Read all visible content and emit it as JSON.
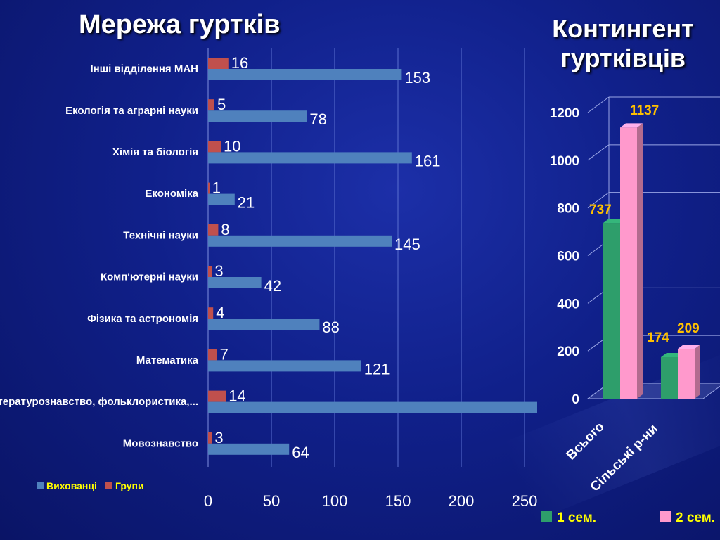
{
  "titles": {
    "left": "Мережа гуртків",
    "right": "Контингент гуртківців"
  },
  "colors": {
    "vyhovantsi": "#4f81bd",
    "grupy": "#c0504d",
    "sem1": "#2e9e6b",
    "sem2": "#ff99cc",
    "axis_text": "#ffffff",
    "value_label_right": "#ffc000",
    "legend_text": "#ffff00"
  },
  "chart_data": [
    {
      "type": "bar",
      "orientation": "horizontal",
      "categories": [
        "Інші відділення МАН",
        "Екологія та аграрні науки",
        "Хімія та біологія",
        "Економіка",
        "Технічні науки",
        "Комп'ютерні науки",
        "Фізика та астрономія",
        "Математика",
        "Літературознавство, фольклористика,...",
        "Мовознавство"
      ],
      "series": [
        {
          "name": "Вихованці",
          "values": [
            153,
            78,
            161,
            21,
            145,
            42,
            88,
            121,
            260,
            64
          ],
          "labels": [
            "153",
            "78",
            "161",
            "21",
            "145",
            "42",
            "88",
            "121",
            "",
            "64"
          ]
        },
        {
          "name": "Групи",
          "values": [
            16,
            5,
            10,
            1,
            8,
            3,
            4,
            7,
            14,
            3
          ],
          "labels": [
            "16",
            "5",
            "10",
            "1",
            "8",
            "3",
            "4",
            "7",
            "14",
            "3"
          ]
        }
      ],
      "xlim": [
        0,
        260
      ],
      "xticks": [
        "0",
        "50",
        "100",
        "150",
        "200",
        "250"
      ],
      "xtick_values": [
        0,
        50,
        100,
        150,
        200,
        250
      ],
      "grid": true,
      "legend": "bottom-left"
    },
    {
      "type": "bar",
      "style": "3d-column",
      "categories": [
        "Всього",
        "Сільські р-ни"
      ],
      "series": [
        {
          "name": "1 сем.",
          "values": [
            737,
            174
          ],
          "labels": [
            "737",
            "174"
          ]
        },
        {
          "name": "2 сем.",
          "values": [
            1137,
            209
          ],
          "labels": [
            "1137",
            "209"
          ]
        }
      ],
      "ylim": [
        0,
        1200
      ],
      "yticks": [
        "0",
        "200",
        "400",
        "600",
        "800",
        "1000",
        "1200"
      ],
      "ytick_values": [
        0,
        200,
        400,
        600,
        800,
        1000,
        1200
      ],
      "grid": true,
      "legend": "bottom"
    }
  ]
}
